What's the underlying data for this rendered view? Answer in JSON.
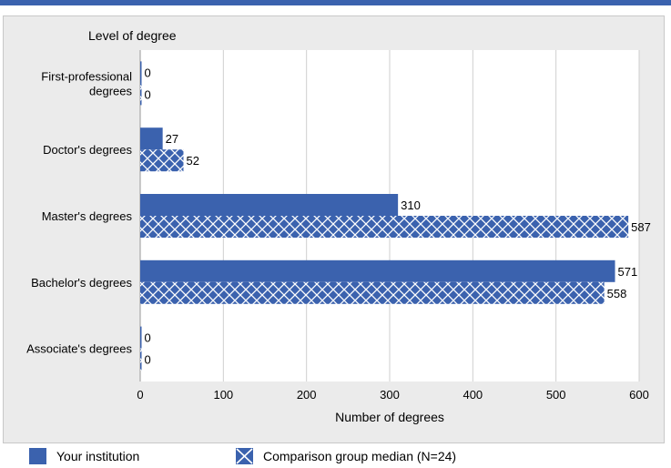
{
  "chart_data": {
    "type": "bar",
    "orientation": "horizontal",
    "y_axis_title": "Level of degree",
    "xlabel": "Number of degrees",
    "xlim": [
      0,
      600
    ],
    "xticks": [
      "0",
      "100",
      "200",
      "300",
      "400",
      "500",
      "600"
    ],
    "categories": [
      [
        "First-professional",
        "degrees"
      ],
      [
        "Doctor's degrees"
      ],
      [
        "Master's degrees"
      ],
      [
        "Bachelor's degrees"
      ],
      [
        "Associate's degrees"
      ]
    ],
    "series": [
      {
        "name": "Your institution",
        "values": [
          0,
          27,
          310,
          571,
          0
        ],
        "color": "#3b62ae",
        "pattern": "solid"
      },
      {
        "name": "Comparison group median (N=24)",
        "values": [
          0,
          52,
          587,
          558,
          0
        ],
        "color": "#3b62ae",
        "pattern": "cross-hatch"
      }
    ],
    "grid": true
  },
  "colors": {
    "bar": "#3b62ae",
    "plot_background": "#ffffff",
    "frame_background": "#ebebeb",
    "top_bar": "#3b62ae"
  }
}
